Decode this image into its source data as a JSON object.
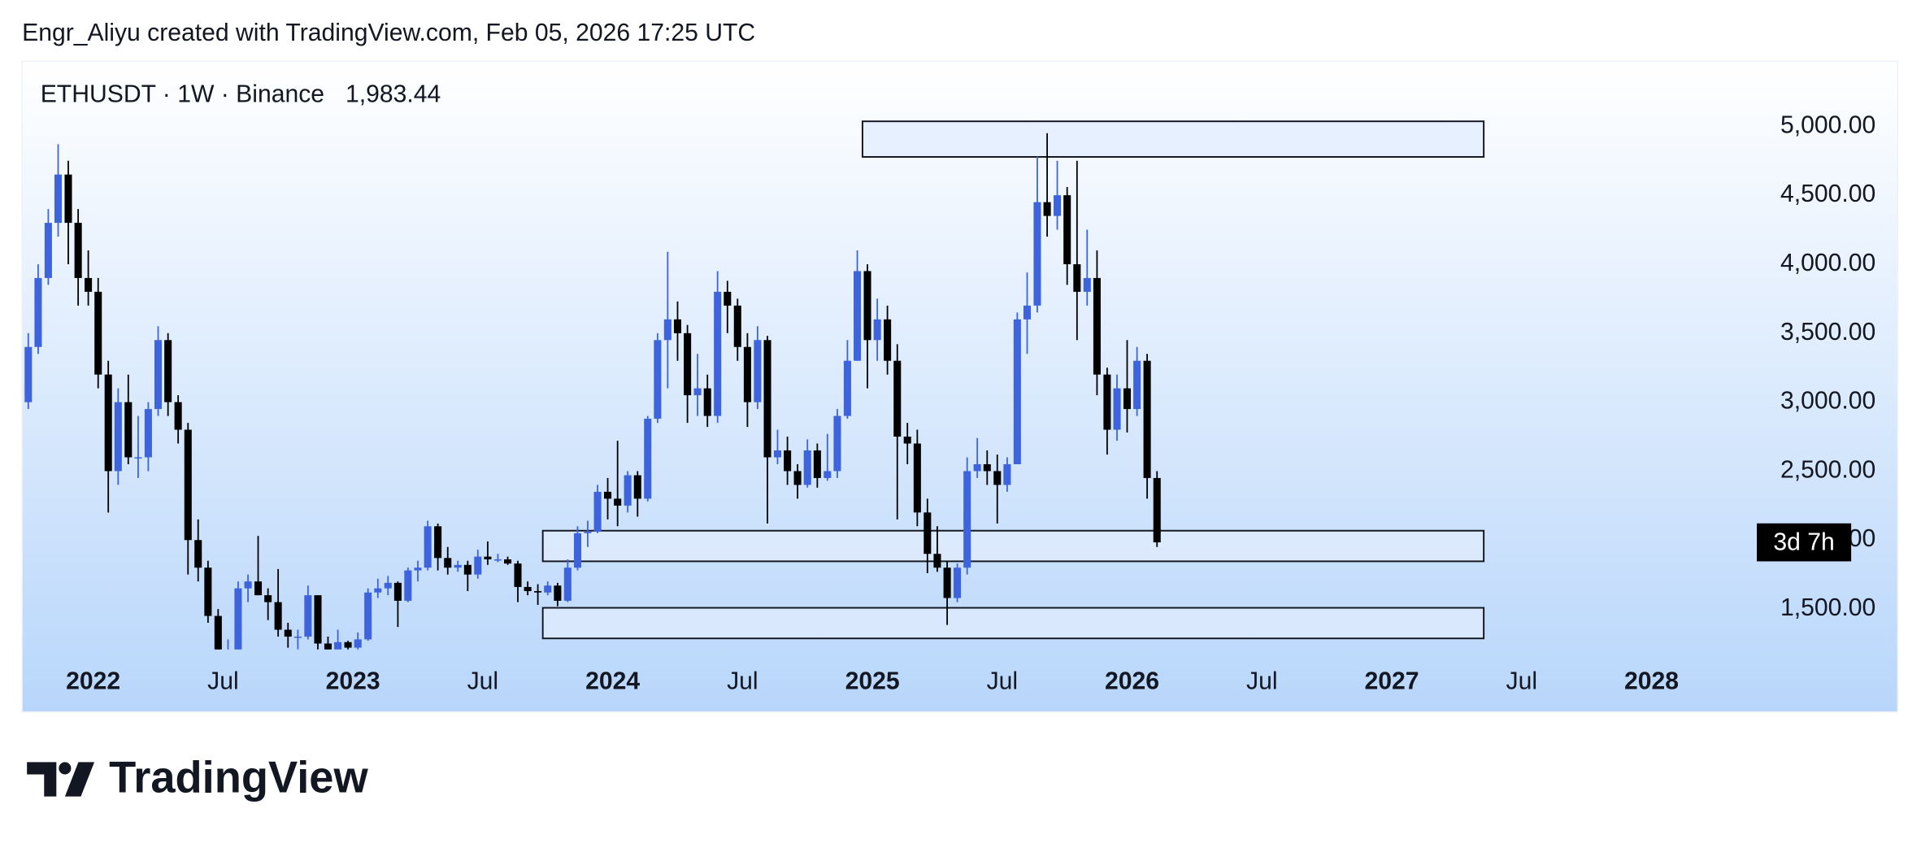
{
  "header": {
    "attribution": "Engr_Aliyu created with TradingView.com, Feb 05, 2026 17:25 UTC"
  },
  "footer": {
    "brand": "TradingView"
  },
  "chart_data": {
    "type": "candlestick",
    "title": "ETHUSDT · 1W · Binance",
    "last_price": 1983.44,
    "last_price_label": "1,983.44",
    "countdown": "3d 7h",
    "up_color": "#3d63dd",
    "down_color": "#000000",
    "xlim": [
      2021.726,
      2028.948
    ],
    "ylim": [
      1207,
      5471
    ],
    "xticks": [
      {
        "value": 2022,
        "label": "2022"
      },
      {
        "value": 2022.5,
        "label": "Jul"
      },
      {
        "value": 2023,
        "label": "2023"
      },
      {
        "value": 2023.5,
        "label": "Jul"
      },
      {
        "value": 2024,
        "label": "2024"
      },
      {
        "value": 2024.5,
        "label": "Jul"
      },
      {
        "value": 2025,
        "label": "2025"
      },
      {
        "value": 2025.5,
        "label": "Jul"
      },
      {
        "value": 2026,
        "label": "2026"
      },
      {
        "value": 2026.5,
        "label": "Jul"
      },
      {
        "value": 2027,
        "label": "2027"
      },
      {
        "value": 2027.5,
        "label": "Jul"
      },
      {
        "value": 2028,
        "label": "2028"
      }
    ],
    "yticks": [
      {
        "value": 1500,
        "label": "1,500.00"
      },
      {
        "value": 2000,
        "label": "2,000.00"
      },
      {
        "value": 2500,
        "label": "2,500.00"
      },
      {
        "value": 3000,
        "label": "3,000.00"
      },
      {
        "value": 3500,
        "label": "3,500.00"
      },
      {
        "value": 4000,
        "label": "4,000.00"
      },
      {
        "value": 4500,
        "label": "4,500.00"
      },
      {
        "value": 5000,
        "label": "5,000.00"
      }
    ],
    "zones": [
      {
        "x": [
          2024.962,
          2027.354
        ],
        "y": [
          4778,
          5036
        ]
      },
      {
        "x": [
          2023.731,
          2027.354
        ],
        "y": [
          1846,
          2068
        ]
      },
      {
        "x": [
          2023.731,
          2027.354
        ],
        "y": [
          1287,
          1509
        ]
      }
    ],
    "x": [
      2021.75,
      2021.788,
      2021.827,
      2021.865,
      2021.904,
      2021.942,
      2021.981,
      2022.019,
      2022.058,
      2022.096,
      2022.135,
      2022.173,
      2022.212,
      2022.25,
      2022.288,
      2022.327,
      2022.365,
      2022.404,
      2022.442,
      2022.481,
      2022.519,
      2022.558,
      2022.596,
      2022.635,
      2022.673,
      2022.712,
      2022.75,
      2022.788,
      2022.827,
      2022.865,
      2022.904,
      2022.942,
      2022.981,
      2023.019,
      2023.058,
      2023.096,
      2023.135,
      2023.173,
      2023.212,
      2023.25,
      2023.288,
      2023.327,
      2023.365,
      2023.404,
      2023.442,
      2023.481,
      2023.519,
      2023.558,
      2023.596,
      2023.635,
      2023.673,
      2023.712,
      2023.75,
      2023.788,
      2023.827,
      2023.865,
      2023.904,
      2023.942,
      2023.981,
      2024.019,
      2024.058,
      2024.096,
      2024.135,
      2024.173,
      2024.212,
      2024.25,
      2024.288,
      2024.327,
      2024.365,
      2024.404,
      2024.442,
      2024.481,
      2024.519,
      2024.558,
      2024.596,
      2024.635,
      2024.673,
      2024.712,
      2024.75,
      2024.788,
      2024.827,
      2024.865,
      2024.904,
      2024.942,
      2024.981,
      2025.019,
      2025.058,
      2025.096,
      2025.135,
      2025.173,
      2025.212,
      2025.25,
      2025.288,
      2025.327,
      2025.365,
      2025.404,
      2025.442,
      2025.481,
      2025.519,
      2025.558,
      2025.596,
      2025.635,
      2025.673,
      2025.712,
      2025.75,
      2025.788,
      2025.827,
      2025.865,
      2025.904,
      2025.942,
      2025.981,
      2026.019,
      2026.058,
      2026.096
    ],
    "ohlc": [
      [
        3000,
        3500,
        2950,
        3400
      ],
      [
        3400,
        4000,
        3350,
        3900
      ],
      [
        3900,
        4400,
        3850,
        4300
      ],
      [
        4300,
        4870,
        4200,
        4650
      ],
      [
        4650,
        4750,
        4000,
        4300
      ],
      [
        4300,
        4400,
        3700,
        3900
      ],
      [
        3900,
        4100,
        3700,
        3800
      ],
      [
        3800,
        3900,
        3100,
        3200
      ],
      [
        3200,
        3300,
        2200,
        2500
      ],
      [
        2500,
        3100,
        2400,
        3000
      ],
      [
        3000,
        3200,
        2550,
        2600
      ],
      [
        2600,
        2900,
        2450,
        2600
      ],
      [
        2600,
        3000,
        2500,
        2950
      ],
      [
        2950,
        3550,
        2900,
        3450
      ],
      [
        3450,
        3500,
        2900,
        3000
      ],
      [
        3000,
        3050,
        2700,
        2800
      ],
      [
        2800,
        2850,
        1750,
        2000
      ],
      [
        2000,
        2150,
        1700,
        1800
      ],
      [
        1800,
        1850,
        1400,
        1450
      ],
      [
        1450,
        1500,
        880,
        1150
      ],
      [
        1150,
        1280,
        1000,
        1200
      ],
      [
        1200,
        1700,
        1150,
        1650
      ],
      [
        1650,
        1750,
        1550,
        1700
      ],
      [
        1700,
        2030,
        1600,
        1600
      ],
      [
        1600,
        1650,
        1420,
        1550
      ],
      [
        1550,
        1790,
        1300,
        1350
      ],
      [
        1350,
        1400,
        1220,
        1300
      ],
      [
        1300,
        1350,
        1190,
        1300
      ],
      [
        1300,
        1670,
        1280,
        1600
      ],
      [
        1600,
        1600,
        1080,
        1250
      ],
      [
        1250,
        1300,
        1150,
        1200
      ],
      [
        1200,
        1350,
        1180,
        1260
      ],
      [
        1260,
        1270,
        1170,
        1220
      ],
      [
        1220,
        1330,
        1190,
        1280
      ],
      [
        1280,
        1650,
        1270,
        1620
      ],
      [
        1620,
        1720,
        1580,
        1650
      ],
      [
        1650,
        1740,
        1600,
        1690
      ],
      [
        1690,
        1700,
        1370,
        1560
      ],
      [
        1560,
        1800,
        1550,
        1780
      ],
      [
        1780,
        1850,
        1700,
        1800
      ],
      [
        1800,
        2140,
        1780,
        2100
      ],
      [
        2100,
        2120,
        1780,
        1870
      ],
      [
        1870,
        1950,
        1750,
        1800
      ],
      [
        1800,
        1850,
        1770,
        1820
      ],
      [
        1820,
        1850,
        1630,
        1750
      ],
      [
        1750,
        1930,
        1720,
        1880
      ],
      [
        1880,
        1990,
        1820,
        1860
      ],
      [
        1860,
        1900,
        1840,
        1860
      ],
      [
        1860,
        1880,
        1820,
        1830
      ],
      [
        1830,
        1850,
        1550,
        1660
      ],
      [
        1660,
        1700,
        1600,
        1630
      ],
      [
        1630,
        1680,
        1530,
        1620
      ],
      [
        1620,
        1700,
        1600,
        1670
      ],
      [
        1670,
        1690,
        1520,
        1560
      ],
      [
        1560,
        1860,
        1550,
        1800
      ],
      [
        1800,
        2100,
        1780,
        2050
      ],
      [
        2050,
        2140,
        1950,
        2060
      ],
      [
        2060,
        2400,
        2050,
        2350
      ],
      [
        2350,
        2450,
        2150,
        2300
      ],
      [
        2300,
        2720,
        2100,
        2250
      ],
      [
        2250,
        2500,
        2200,
        2470
      ],
      [
        2470,
        2500,
        2170,
        2300
      ],
      [
        2300,
        2900,
        2280,
        2880
      ],
      [
        2880,
        3500,
        2850,
        3450
      ],
      [
        3450,
        4090,
        3100,
        3600
      ],
      [
        3600,
        3730,
        3300,
        3500
      ],
      [
        3500,
        3560,
        2850,
        3050
      ],
      [
        3050,
        3350,
        2900,
        3100
      ],
      [
        3100,
        3200,
        2820,
        2900
      ],
      [
        2900,
        3950,
        2850,
        3800
      ],
      [
        3800,
        3880,
        3500,
        3700
      ],
      [
        3700,
        3750,
        3300,
        3400
      ],
      [
        3400,
        3500,
        2820,
        3000
      ],
      [
        3000,
        3550,
        2950,
        3450
      ],
      [
        3450,
        3480,
        2120,
        2600
      ],
      [
        2600,
        2800,
        2550,
        2650
      ],
      [
        2650,
        2750,
        2400,
        2500
      ],
      [
        2500,
        2550,
        2300,
        2400
      ],
      [
        2400,
        2730,
        2380,
        2650
      ],
      [
        2650,
        2700,
        2380,
        2450
      ],
      [
        2450,
        2770,
        2430,
        2500
      ],
      [
        2500,
        2950,
        2450,
        2900
      ],
      [
        2900,
        3450,
        2880,
        3300
      ],
      [
        3300,
        4100,
        3300,
        3950
      ],
      [
        3950,
        4000,
        3100,
        3450
      ],
      [
        3450,
        3750,
        3300,
        3600
      ],
      [
        3600,
        3700,
        3200,
        3300
      ],
      [
        3300,
        3420,
        2150,
        2750
      ],
      [
        2750,
        2850,
        2550,
        2700
      ],
      [
        2700,
        2800,
        2100,
        2200
      ],
      [
        2200,
        2300,
        1760,
        1900
      ],
      [
        1900,
        2100,
        1770,
        1800
      ],
      [
        1800,
        1850,
        1385,
        1580
      ],
      [
        1580,
        1830,
        1550,
        1800
      ],
      [
        1800,
        2600,
        1750,
        2500
      ],
      [
        2500,
        2740,
        2450,
        2550
      ],
      [
        2550,
        2650,
        2400,
        2500
      ],
      [
        2500,
        2620,
        2120,
        2400
      ],
      [
        2400,
        2600,
        2350,
        2550
      ],
      [
        2550,
        3650,
        2550,
        3600
      ],
      [
        3600,
        3940,
        3350,
        3700
      ],
      [
        3700,
        4780,
        3650,
        4450
      ],
      [
        4450,
        4950,
        4200,
        4350
      ],
      [
        4350,
        4750,
        4250,
        4500
      ],
      [
        4500,
        4560,
        3850,
        4000
      ],
      [
        4000,
        4750,
        3450,
        3800
      ],
      [
        3800,
        4250,
        3700,
        3900
      ],
      [
        3900,
        4100,
        3050,
        3200
      ],
      [
        3200,
        3250,
        2620,
        2800
      ],
      [
        2800,
        3200,
        2720,
        3100
      ],
      [
        3100,
        3450,
        2780,
        2950
      ],
      [
        2950,
        3400,
        2900,
        3300
      ],
      [
        3300,
        3350,
        2300,
        2450
      ],
      [
        2450,
        2500,
        1950,
        1983.44
      ]
    ]
  }
}
